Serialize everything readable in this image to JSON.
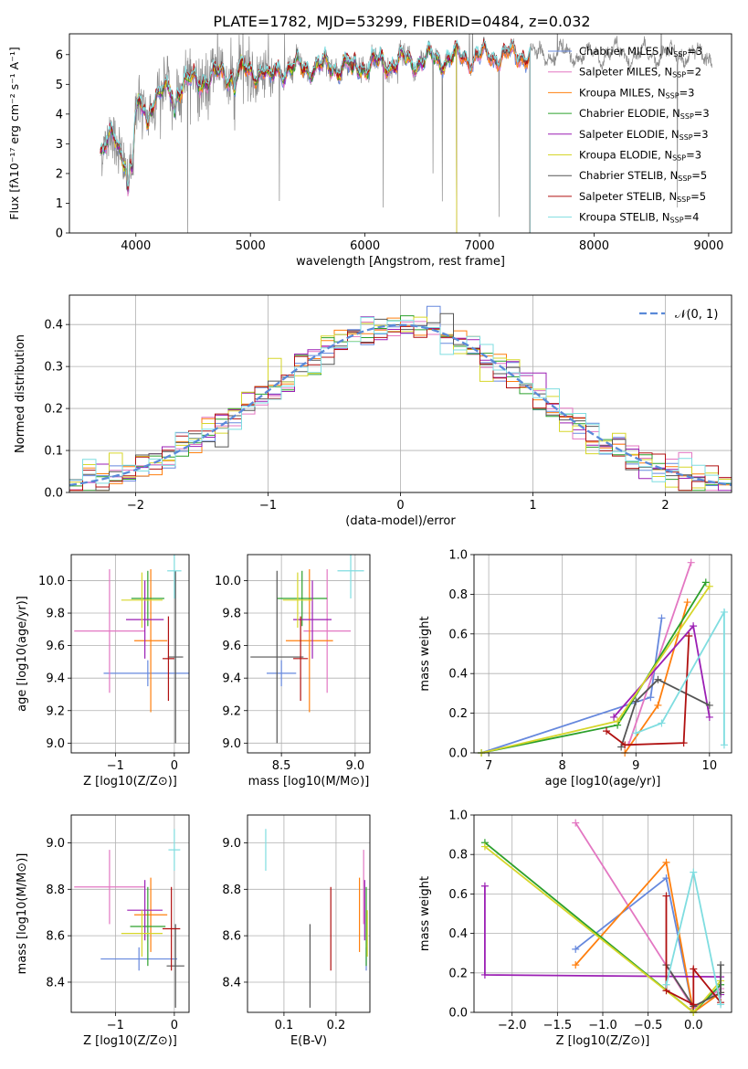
{
  "figure": {
    "title": "PLATE=1782, MJD=53299, FIBERID=0484, z=0.032"
  },
  "colors": {
    "cM": "#6688dd",
    "sM": "#e377c2",
    "kM": "#ff7f0e",
    "cE": "#2ca02c",
    "sE": "#9b1fb4",
    "kE": "#d6d62a",
    "cS": "#555555",
    "sS": "#b01010",
    "kS": "#7fdde0",
    "grid": "#b0b0b0"
  },
  "chart_data": [
    {
      "id": "spectrum",
      "type": "line",
      "xlabel": "wavelength [Angstrom, rest frame]",
      "ylabel": "Flux [fλ10⁻¹⁷ erg cm⁻² s⁻¹ A⁻¹]",
      "xlim": [
        3420,
        9200
      ],
      "ylim": [
        0,
        6.7
      ],
      "xticks": [
        4000,
        5000,
        6000,
        7000,
        8000,
        9000
      ],
      "yticks": [
        0,
        1,
        2,
        3,
        4,
        5,
        6
      ],
      "grid": false,
      "legend_position": "top-right",
      "continuum": {
        "x": [
          3700,
          3800,
          3900,
          4000,
          4100,
          4300,
          4500,
          4800,
          5100,
          5400,
          5700,
          6000,
          6300,
          6600,
          6900,
          7200,
          7400
        ],
        "y": [
          2.8,
          3.2,
          2.6,
          4.0,
          4.4,
          4.8,
          5.1,
          5.35,
          5.45,
          5.55,
          5.6,
          5.65,
          5.75,
          5.85,
          5.9,
          5.95,
          6.0
        ]
      },
      "series": [
        {
          "name": "Chabrier MILES, N_SSP=3",
          "color_key": "cM",
          "end": 7440
        },
        {
          "name": "Salpeter MILES, N_SSP=2",
          "color_key": "sM",
          "end": 7440
        },
        {
          "name": "Kroupa MILES, N_SSP=3",
          "color_key": "kM",
          "end": 7440
        },
        {
          "name": "Chabrier ELODIE, N_SSP=3",
          "color_key": "cE",
          "end": 6800
        },
        {
          "name": "Salpeter ELODIE, N_SSP=3",
          "color_key": "sE",
          "end": 6800
        },
        {
          "name": "Kroupa ELODIE, N_SSP=3",
          "color_key": "kE",
          "end": 6800
        },
        {
          "name": "Chabrier STELIB, N_SSP=5",
          "color_key": "cS",
          "end": 7440
        },
        {
          "name": "Salpeter STELIB, N_SSP=5",
          "color_key": "sS",
          "end": 7440
        },
        {
          "name": "Kroupa STELIB, N_SSP=4",
          "color_key": "kS",
          "end": 7440
        }
      ],
      "observed": {
        "name": "data",
        "color": "#8a8a8a",
        "x_range": [
          3690,
          9030
        ]
      }
    },
    {
      "id": "residuals",
      "type": "line",
      "xlabel": "(data-model)/error",
      "ylabel": "Normed distribution",
      "xlim": [
        -2.5,
        2.5
      ],
      "ylim": [
        0,
        0.47
      ],
      "xticks": [
        -2,
        -1,
        0,
        1,
        2
      ],
      "yticks": [
        0.0,
        0.1,
        0.2,
        0.3,
        0.4
      ],
      "grid": true,
      "legend": "𝒩(0, 1)",
      "legend_position": "top-right",
      "bin_width": 0.1,
      "gaussian": {
        "mean": 0,
        "sigma": 1
      }
    },
    {
      "id": "age_vs_Z",
      "type": "scatter",
      "xlabel": "Z [log10(Z/Z⊙)]",
      "ylabel": "age  [log10(age/yr)]",
      "xlim": [
        -1.75,
        0.25
      ],
      "ylim": [
        8.94,
        10.16
      ],
      "xticks": [
        -1,
        0
      ],
      "yticks": [
        9.0,
        9.2,
        9.4,
        9.6,
        9.8,
        10.0
      ],
      "grid": true,
      "points": [
        {
          "c": "cM",
          "x": -0.45,
          "y": 9.43,
          "xerr": 0.75,
          "yerr": 0.08
        },
        {
          "c": "sM",
          "x": -1.1,
          "y": 9.69,
          "xerr": 0.6,
          "yerr": 0.38
        },
        {
          "c": "kM",
          "x": -0.4,
          "y": 9.63,
          "xerr": 0.28,
          "yerr": 0.44
        },
        {
          "c": "cE",
          "x": -0.45,
          "y": 9.89,
          "xerr": 0.28,
          "yerr": 0.17
        },
        {
          "c": "sE",
          "x": -0.5,
          "y": 9.76,
          "xerr": 0.32,
          "yerr": 0.24
        },
        {
          "c": "kE",
          "x": -0.55,
          "y": 9.88,
          "xerr": 0.35,
          "yerr": 0.17
        },
        {
          "c": "cS",
          "x": 0.02,
          "y": 9.53,
          "xerr": 0.13,
          "yerr": 0.53
        },
        {
          "c": "sS",
          "x": -0.1,
          "y": 9.52,
          "xerr": 0.1,
          "yerr": 0.26
        },
        {
          "c": "kS",
          "x": 0.0,
          "y": 10.06,
          "xerr": 0.12,
          "yerr": 0.17
        }
      ]
    },
    {
      "id": "age_vs_mass",
      "type": "scatter",
      "xlabel": "mass [log10(M/M⊙)]",
      "ylabel": "",
      "xlim": [
        8.27,
        9.1
      ],
      "ylim": [
        8.94,
        10.16
      ],
      "xticks": [
        8.5,
        9.0
      ],
      "yticks": [
        9.0,
        9.2,
        9.4,
        9.6,
        9.8,
        10.0
      ],
      "grid": true,
      "points": [
        {
          "c": "cM",
          "x": 8.5,
          "y": 9.43,
          "xerr": 0.1,
          "yerr": 0.08
        },
        {
          "c": "sM",
          "x": 8.81,
          "y": 9.69,
          "xerr": 0.16,
          "yerr": 0.38
        },
        {
          "c": "kM",
          "x": 8.69,
          "y": 9.63,
          "xerr": 0.16,
          "yerr": 0.44
        },
        {
          "c": "cE",
          "x": 8.64,
          "y": 9.89,
          "xerr": 0.17,
          "yerr": 0.17
        },
        {
          "c": "sE",
          "x": 8.71,
          "y": 9.76,
          "xerr": 0.13,
          "yerr": 0.24
        },
        {
          "c": "kE",
          "x": 8.61,
          "y": 9.88,
          "xerr": 0.1,
          "yerr": 0.17
        },
        {
          "c": "cS",
          "x": 8.47,
          "y": 9.53,
          "xerr": 0.18,
          "yerr": 0.53
        },
        {
          "c": "sS",
          "x": 8.63,
          "y": 9.52,
          "xerr": 0.05,
          "yerr": 0.26
        },
        {
          "c": "kS",
          "x": 8.97,
          "y": 10.06,
          "xerr": 0.09,
          "yerr": 0.17
        }
      ]
    },
    {
      "id": "mass_vs_Z",
      "type": "scatter",
      "xlabel": "Z [log10(Z/Z⊙)]",
      "ylabel": "mass [log10(M/M⊙)]",
      "xlim": [
        -1.75,
        0.25
      ],
      "ylim": [
        8.27,
        9.12
      ],
      "xticks": [
        -1,
        0
      ],
      "yticks": [
        8.4,
        8.6,
        8.8,
        9.0
      ],
      "grid": true,
      "points": [
        {
          "c": "cM",
          "x": -0.6,
          "y": 8.5,
          "xerr": 0.65,
          "yerr": 0.05
        },
        {
          "c": "sM",
          "x": -1.1,
          "y": 8.81,
          "xerr": 0.6,
          "yerr": 0.16
        },
        {
          "c": "kM",
          "x": -0.4,
          "y": 8.69,
          "xerr": 0.28,
          "yerr": 0.16
        },
        {
          "c": "cE",
          "x": -0.45,
          "y": 8.64,
          "xerr": 0.3,
          "yerr": 0.17
        },
        {
          "c": "sE",
          "x": -0.5,
          "y": 8.71,
          "xerr": 0.3,
          "yerr": 0.13
        },
        {
          "c": "kE",
          "x": -0.55,
          "y": 8.61,
          "xerr": 0.35,
          "yerr": 0.1
        },
        {
          "c": "cS",
          "x": 0.02,
          "y": 8.47,
          "xerr": 0.15,
          "yerr": 0.18
        },
        {
          "c": "sS",
          "x": -0.05,
          "y": 8.63,
          "xerr": 0.15,
          "yerr": 0.18
        },
        {
          "c": "kS",
          "x": 0.0,
          "y": 8.97,
          "xerr": 0.1,
          "yerr": 0.09
        }
      ]
    },
    {
      "id": "mass_vs_ebv",
      "type": "scatter",
      "xlabel": "E(B-V)",
      "ylabel": "",
      "xlim": [
        0.03,
        0.265
      ],
      "ylim": [
        8.27,
        9.12
      ],
      "xticks": [
        0.1,
        0.2
      ],
      "yticks": [
        8.4,
        8.6,
        8.8,
        9.0
      ],
      "grid": true,
      "points": [
        {
          "c": "cM",
          "x": 0.258,
          "y": 8.5,
          "yerr": 0.05
        },
        {
          "c": "sM",
          "x": 0.253,
          "y": 8.81,
          "yerr": 0.16
        },
        {
          "c": "kM",
          "x": 0.245,
          "y": 8.69,
          "yerr": 0.16
        },
        {
          "c": "cE",
          "x": 0.258,
          "y": 8.64,
          "yerr": 0.17
        },
        {
          "c": "sE",
          "x": 0.255,
          "y": 8.71,
          "yerr": 0.13
        },
        {
          "c": "kE",
          "x": 0.26,
          "y": 8.61,
          "yerr": 0.1
        },
        {
          "c": "cS",
          "x": 0.15,
          "y": 8.47,
          "yerr": 0.18
        },
        {
          "c": "sS",
          "x": 0.19,
          "y": 8.63,
          "yerr": 0.18
        },
        {
          "c": "kS",
          "x": 0.065,
          "y": 8.97,
          "yerr": 0.09
        }
      ]
    },
    {
      "id": "weight_vs_age",
      "type": "line",
      "xlabel": "age  [log10(age/yr)]",
      "ylabel": "mass weight",
      "xlim": [
        6.8,
        10.3
      ],
      "ylim": [
        0,
        1.0
      ],
      "xticks": [
        7,
        8,
        9,
        10
      ],
      "yticks": [
        0.0,
        0.2,
        0.4,
        0.6,
        0.8,
        1.0
      ],
      "grid": true,
      "series": [
        {
          "c": "cM",
          "x": [
            6.9,
            9.2,
            9.35
          ],
          "y": [
            0.0,
            0.28,
            0.68
          ]
        },
        {
          "c": "sM",
          "x": [
            8.9,
            9.75
          ],
          "y": [
            0.04,
            0.96
          ]
        },
        {
          "c": "kM",
          "x": [
            8.85,
            9.3,
            9.7
          ],
          "y": [
            0.0,
            0.24,
            0.76
          ]
        },
        {
          "c": "cE",
          "x": [
            6.9,
            8.75,
            9.95
          ],
          "y": [
            0.0,
            0.14,
            0.86
          ]
        },
        {
          "c": "sE",
          "x": [
            8.7,
            9.78,
            10.0
          ],
          "y": [
            0.18,
            0.64,
            0.18
          ]
        },
        {
          "c": "kE",
          "x": [
            6.9,
            8.75,
            10.0
          ],
          "y": [
            0.0,
            0.16,
            0.84
          ]
        },
        {
          "c": "cS",
          "x": [
            8.8,
            9.0,
            9.3,
            10.0
          ],
          "y": [
            0.03,
            0.26,
            0.37,
            0.24
          ]
        },
        {
          "c": "sS",
          "x": [
            8.6,
            8.85,
            9.65,
            9.72
          ],
          "y": [
            0.11,
            0.04,
            0.05,
            0.59
          ]
        },
        {
          "c": "kS",
          "x": [
            9.0,
            9.35,
            10.2,
            10.2
          ],
          "y": [
            0.1,
            0.15,
            0.71,
            0.04
          ]
        }
      ]
    },
    {
      "id": "weight_vs_Z",
      "type": "line",
      "xlabel": "Z [log10(Z/Z⊙)]",
      "ylabel": "mass weight",
      "xlim": [
        -2.42,
        0.42
      ],
      "ylim": [
        0,
        1.0
      ],
      "xticks": [
        -2.0,
        -1.5,
        -1.0,
        -0.5,
        0.0
      ],
      "yticks": [
        0.0,
        0.2,
        0.4,
        0.6,
        0.8,
        1.0
      ],
      "grid": true,
      "series": [
        {
          "c": "cM",
          "x": [
            -1.3,
            -0.3,
            0.0
          ],
          "y": [
            0.32,
            0.68,
            0.0
          ]
        },
        {
          "c": "sM",
          "x": [
            -1.3,
            0.0,
            0.3
          ],
          "y": [
            0.96,
            0.02,
            0.12
          ]
        },
        {
          "c": "kM",
          "x": [
            -1.3,
            -0.3,
            0.0,
            0.3
          ],
          "y": [
            0.24,
            0.76,
            0.0,
            0.1
          ]
        },
        {
          "c": "cE",
          "x": [
            -2.3,
            0.0,
            0.3
          ],
          "y": [
            0.86,
            0.0,
            0.14
          ]
        },
        {
          "c": "sE",
          "x": [
            -2.3,
            -2.3,
            0.3,
            0.3
          ],
          "y": [
            0.64,
            0.19,
            0.18,
            0.09
          ]
        },
        {
          "c": "kE",
          "x": [
            -2.3,
            0.0,
            0.3
          ],
          "y": [
            0.84,
            0.0,
            0.16
          ]
        },
        {
          "c": "cS",
          "x": [
            -0.3,
            0.0,
            0.3,
            0.3
          ],
          "y": [
            0.24,
            0.03,
            0.1,
            0.24
          ]
        },
        {
          "c": "sS",
          "x": [
            -0.3,
            -0.3,
            0.0,
            0.0,
            0.3
          ],
          "y": [
            0.59,
            0.11,
            0.04,
            0.22,
            0.05
          ]
        },
        {
          "c": "kS",
          "x": [
            -0.3,
            0.0,
            0.3
          ],
          "y": [
            0.14,
            0.71,
            0.04
          ]
        }
      ]
    }
  ]
}
